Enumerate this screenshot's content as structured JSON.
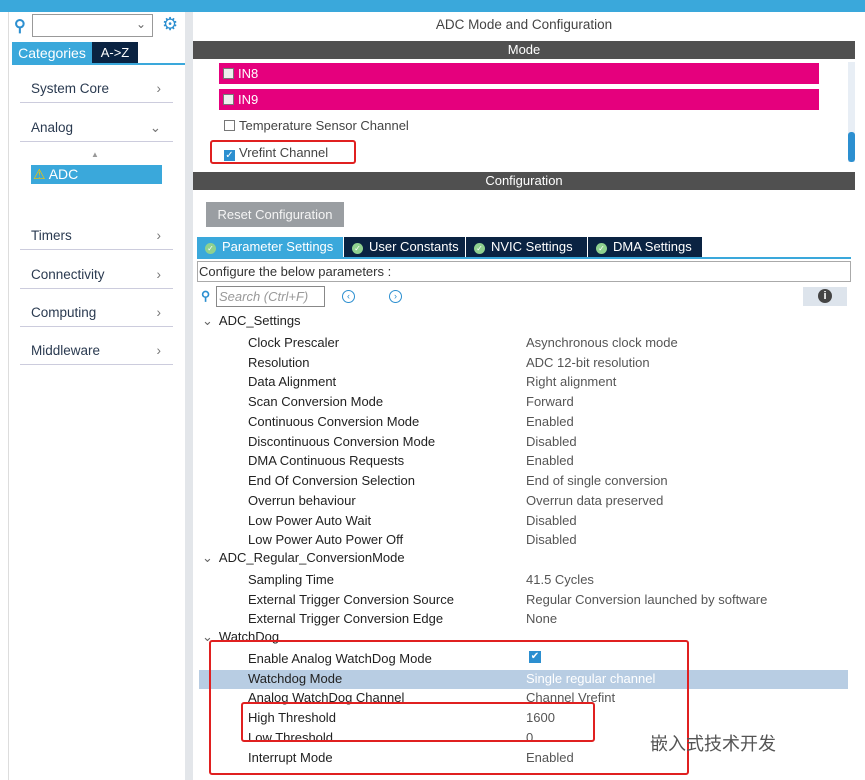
{
  "left": {
    "categories_tab": "Categories",
    "az_tab": "A->Z",
    "items": [
      {
        "label": "System Core",
        "arrow": ">"
      },
      {
        "label": "Analog",
        "arrow": "v"
      },
      {
        "label": "Timers",
        "arrow": ">"
      },
      {
        "label": "Connectivity",
        "arrow": ">"
      },
      {
        "label": "Computing",
        "arrow": ">"
      },
      {
        "label": "Middleware",
        "arrow": ">"
      }
    ],
    "selected": "ADC"
  },
  "main": {
    "title": "ADC Mode and Configuration",
    "mode_header": "Mode",
    "config_header": "Configuration",
    "mode_items": [
      {
        "label": "IN8",
        "checked": false
      },
      {
        "label": "IN9",
        "checked": false
      },
      {
        "label": "Temperature Sensor Channel",
        "checked": false
      },
      {
        "label": "Vrefint Channel",
        "checked": true
      }
    ],
    "reset_label": "Reset Configuration",
    "tabs": [
      "Parameter Settings",
      "User Constants",
      "NVIC Settings",
      "DMA Settings"
    ],
    "configure_text": "Configure the below parameters :",
    "search_placeholder": "Search (Ctrl+F)",
    "sections": [
      {
        "name": "ADC_Settings",
        "rows": [
          [
            "Clock Prescaler",
            "Asynchronous clock mode"
          ],
          [
            "Resolution",
            "ADC 12-bit resolution"
          ],
          [
            "Data Alignment",
            "Right alignment"
          ],
          [
            "Scan Conversion Mode",
            "Forward"
          ],
          [
            "Continuous Conversion Mode",
            "Enabled"
          ],
          [
            "Discontinuous Conversion Mode",
            "Disabled"
          ],
          [
            "DMA Continuous Requests",
            "Enabled"
          ],
          [
            "End Of Conversion Selection",
            "End of single conversion"
          ],
          [
            "Overrun behaviour",
            "Overrun data preserved"
          ],
          [
            "Low Power Auto Wait",
            "Disabled"
          ],
          [
            "Low Power Auto Power Off",
            "Disabled"
          ]
        ]
      },
      {
        "name": "ADC_Regular_ConversionMode",
        "rows": [
          [
            "Sampling Time",
            "41.5 Cycles"
          ],
          [
            "External Trigger Conversion Source",
            "Regular Conversion launched by software"
          ],
          [
            "External Trigger Conversion Edge",
            "None"
          ]
        ]
      },
      {
        "name": "WatchDog",
        "rows": [
          [
            "Enable Analog WatchDog Mode",
            "✔"
          ],
          [
            "Watchdog Mode",
            "Single regular channel"
          ],
          [
            "Analog WatchDog Channel",
            "Channel Vrefint"
          ],
          [
            "High Threshold",
            "1600"
          ],
          [
            "Low Threshold",
            "0"
          ],
          [
            "Interrupt Mode",
            "Enabled"
          ]
        ]
      }
    ]
  },
  "watermark": "嵌入式技术开发",
  "colors": {
    "accent": "#3aa8db",
    "pink": "#e5007d",
    "dark": "#0a2342",
    "highlight": "#e02020"
  }
}
